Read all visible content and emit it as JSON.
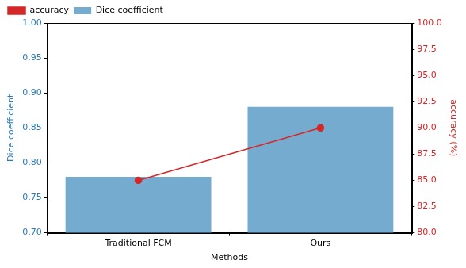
{
  "chart_data": {
    "type": "bar",
    "categories": [
      "Traditional FCM",
      "Ours"
    ],
    "x_label": "Methods",
    "y_label": "Dice coefficient",
    "y2_label": "accuracy (%)",
    "series": [
      {
        "name": "Dice coefficient",
        "type": "bar",
        "color": "#76abd0",
        "values": [
          0.78,
          0.88
        ]
      },
      {
        "name": "accuracy",
        "type": "line",
        "color": "#d62728",
        "marker": "circle",
        "axis": "y2",
        "values": [
          85,
          90
        ]
      }
    ],
    "ylim": [
      0.7,
      1.0
    ],
    "yticks": [
      {
        "value": 0.7,
        "label": "0.70"
      },
      {
        "value": 0.75,
        "label": "0.75"
      },
      {
        "value": 0.8,
        "label": "0.80"
      },
      {
        "value": 0.85,
        "label": "0.85"
      },
      {
        "value": 0.9,
        "label": "0.90"
      },
      {
        "value": 0.95,
        "label": "0.95"
      },
      {
        "value": 1.0,
        "label": "1.00"
      }
    ],
    "y2lim": [
      80,
      100
    ],
    "y2ticks": [
      {
        "value": 80,
        "label": "80.0"
      },
      82.5,
      {
        "value": 85,
        "label": "85.0"
      },
      87.5,
      {
        "value": 90,
        "label": "90.0"
      },
      92.5,
      {
        "value": 95,
        "label": "95.0"
      },
      97.5,
      {
        "value": 100,
        "label": "100.0"
      }
    ],
    "legend": "upper left",
    "grid": false
  }
}
